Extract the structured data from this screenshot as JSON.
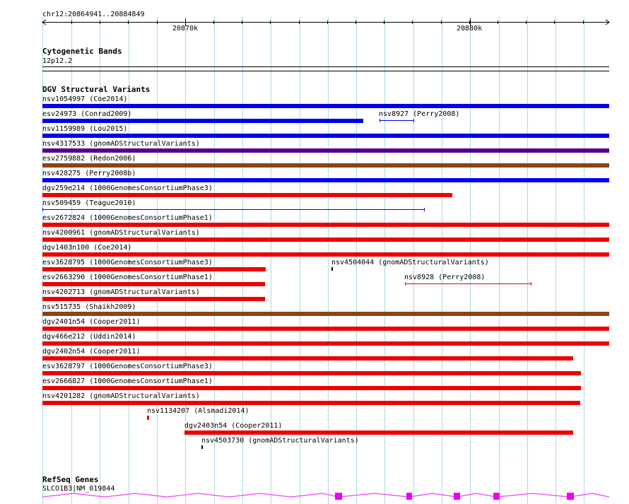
{
  "ruler": {
    "location": "chr12:20864941..20884849",
    "ticks": [
      {
        "label": "20870k"
      },
      {
        "label": "20880k"
      }
    ]
  },
  "tracks": {
    "cytogenetic": {
      "title": "Cytogenetic Bands",
      "band": "12p12.2"
    },
    "dgv": {
      "title": "DGV Structural Variants",
      "features": [
        {
          "label": "nsv1054997 (Coe2014)",
          "color": "#0000ee"
        },
        {
          "label": "esv24973 (Conrad2009)",
          "color": "#0000ee"
        },
        {
          "label": "nsv8927 (Perry2008)",
          "color": "#0000ee"
        },
        {
          "label": "nsv1159989 (Lou2015)",
          "color": "#0000ee"
        },
        {
          "label": "nsv4317533 (gnomADStructuralVariants)",
          "color": "#550088"
        },
        {
          "label": "esv2759882 (Redon2006)",
          "color": "#8b4513"
        },
        {
          "label": "nsv428275 (Perry2008b)",
          "color": "#0000ee"
        },
        {
          "label": "dgv259e214 (1000GenomesConsortiumPhase3)",
          "color": "#ee0000"
        },
        {
          "label": "nsv509459 (Teague2010)",
          "color": "#0000ee"
        },
        {
          "label": "esv2672824 (1000GenomesConsortiumPhase1)",
          "color": "#ee0000"
        },
        {
          "label": "nsv4200961 (gnomADStructuralVariants)",
          "color": "#ee0000"
        },
        {
          "label": "dgv1403n100 (Coe2014)",
          "color": "#ee0000"
        },
        {
          "label": "esv3628795 (1000GenomesConsortiumPhase3)",
          "color": "#ee0000"
        },
        {
          "label": "nsv4504044 (gnomADStructuralVariants)",
          "color": "#000000"
        },
        {
          "label": "esv2663290 (1000GenomesConsortiumPhase1)",
          "color": "#ee0000"
        },
        {
          "label": "nsv8928 (Perry2008)",
          "color": "#ee0000"
        },
        {
          "label": "nsv4202713 (gnomADStructuralVariants)",
          "color": "#ee0000"
        },
        {
          "label": "nsv515735 (Shaikh2009)",
          "color": "#8b4513"
        },
        {
          "label": "dgv2401n54 (Cooper2011)",
          "color": "#ee0000"
        },
        {
          "label": "dgv466e212 (Uddin2014)",
          "color": "#ee0000"
        },
        {
          "label": "dgv2402n54 (Cooper2011)",
          "color": "#ee0000"
        },
        {
          "label": "esv3628797 (1000GenomesConsortiumPhase3)",
          "color": "#ee0000"
        },
        {
          "label": "esv2666827 (1000GenomesConsortiumPhase1)",
          "color": "#ee0000"
        },
        {
          "label": "nsv4201282 (gnomADStructuralVariants)",
          "color": "#ee0000"
        },
        {
          "label": "nsv1134207 (Alsmadi2014)",
          "color": "#ee0000"
        },
        {
          "label": "dgv2403n54 (Cooper2011)",
          "color": "#ee0000"
        },
        {
          "label": "nsv4503730 (gnomADStructuralVariants)",
          "color": "#000000"
        }
      ]
    },
    "refseq": {
      "title": "RefSeq Genes",
      "gene": "SLCO1B3|NM_019844",
      "intron_color": "#ee44ee",
      "exon_color": "#ee00ee"
    }
  },
  "colors": {
    "grid": "#add8e6",
    "axis": "#000000"
  }
}
